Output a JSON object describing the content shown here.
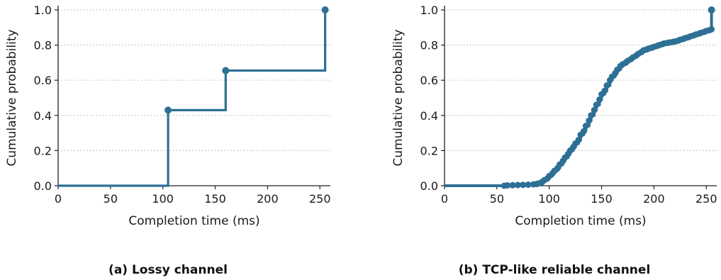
{
  "colors": {
    "series": "#2e6f95",
    "grid": "#bdbdbd",
    "axis": "#222222"
  },
  "chart_data": [
    {
      "type": "line",
      "subtype": "ecdf-step",
      "caption": "(a) Lossy channel",
      "xlabel": "Completion time (ms)",
      "ylabel": "Cumulative probability",
      "xlim": [
        0,
        260
      ],
      "ylim": [
        0,
        1.0
      ],
      "xticks": [
        0,
        50,
        100,
        150,
        200,
        250
      ],
      "yticks": [
        0.0,
        0.2,
        0.4,
        0.6,
        0.8,
        1.0
      ],
      "grid": "horizontal dotted",
      "series": [
        {
          "x": [
            0,
            105,
            105,
            160,
            160,
            255,
            255
          ],
          "y": [
            0,
            0,
            0.43,
            0.43,
            0.655,
            0.655,
            1.0
          ]
        }
      ],
      "markers": [
        {
          "x": 105,
          "y": 0.43
        },
        {
          "x": 160,
          "y": 0.655
        },
        {
          "x": 255,
          "y": 1.0
        }
      ]
    },
    {
      "type": "line",
      "subtype": "ecdf-step",
      "caption": "(b) TCP-like reliable channel",
      "xlabel": "Completion time (ms)",
      "ylabel": "Cumulative probability",
      "xlim": [
        0,
        260
      ],
      "ylim": [
        0,
        1.0
      ],
      "xticks": [
        0,
        50,
        100,
        150,
        200,
        250
      ],
      "yticks": [
        0.0,
        0.2,
        0.4,
        0.6,
        0.8,
        1.0
      ],
      "grid": "horizontal dotted",
      "series": [
        {
          "x": [
            0,
            57,
            60,
            65,
            70,
            75,
            80,
            85,
            88,
            90,
            93,
            95,
            98,
            100,
            103,
            105,
            108,
            110,
            113,
            115,
            118,
            120,
            123,
            125,
            128,
            130,
            133,
            135,
            138,
            140,
            143,
            145,
            148,
            150,
            153,
            155,
            158,
            160,
            163,
            165,
            168,
            170,
            173,
            175,
            178,
            180,
            183,
            185,
            188,
            190,
            193,
            195,
            198,
            200,
            203,
            205,
            208,
            210,
            213,
            215,
            218,
            220,
            223,
            225,
            228,
            230,
            233,
            235,
            238,
            240,
            243,
            245,
            248,
            250,
            253,
            255,
            255
          ],
          "y": [
            0,
            0.0,
            0.002,
            0.003,
            0.004,
            0.005,
            0.006,
            0.008,
            0.01,
            0.013,
            0.02,
            0.03,
            0.04,
            0.055,
            0.07,
            0.085,
            0.1,
            0.12,
            0.14,
            0.16,
            0.18,
            0.2,
            0.22,
            0.24,
            0.26,
            0.29,
            0.31,
            0.34,
            0.37,
            0.4,
            0.43,
            0.46,
            0.49,
            0.52,
            0.54,
            0.57,
            0.6,
            0.62,
            0.64,
            0.66,
            0.68,
            0.69,
            0.7,
            0.71,
            0.72,
            0.73,
            0.74,
            0.75,
            0.76,
            0.77,
            0.775,
            0.78,
            0.785,
            0.79,
            0.795,
            0.8,
            0.805,
            0.81,
            0.812,
            0.815,
            0.818,
            0.82,
            0.825,
            0.83,
            0.835,
            0.84,
            0.845,
            0.85,
            0.855,
            0.86,
            0.865,
            0.87,
            0.875,
            0.88,
            0.885,
            0.89,
            1.0
          ]
        }
      ]
    }
  ]
}
